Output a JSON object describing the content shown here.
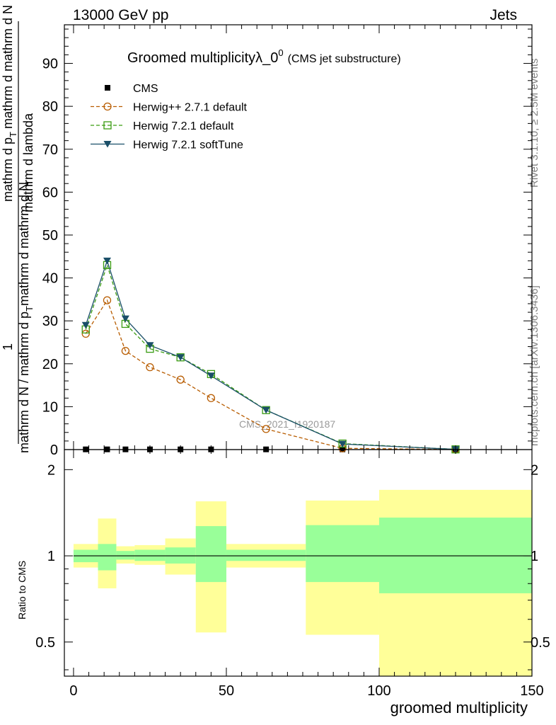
{
  "header": {
    "left": "13000 GeV pp",
    "right": "Jets"
  },
  "side_labels": {
    "rivet": "Rivet 3.1.10, ≥ 2.5M events",
    "mcplots": "mcplots.cern.ch [arXiv:1306.3436]"
  },
  "chart_data": {
    "type": "line",
    "title": "Groomed multiplicityλ_0",
    "title_sup": "0",
    "subtitle": "(CMS jet substructure)",
    "watermark": "CMS_2021_I1920187",
    "xlabel": "groomed multiplicity",
    "ylabel_top": {
      "numerator": "1",
      "denominator": "mathrm d N / mathrm d p",
      "denominator_sub": "T",
      "mid": "mathrm d",
      "mid2": "mathrm d N",
      "mid3": "mathrm d p",
      "mid3_sub": "T",
      "tail": "mathrm d lambda"
    },
    "ylabel_ratio": "Ratio to CMS",
    "xlim": [
      -3,
      150
    ],
    "ylim": [
      0,
      99
    ],
    "ratio_ylim_log": [
      0.38,
      2.35
    ],
    "x_ticks": [
      "0",
      "50",
      "100",
      "150"
    ],
    "y_ticks": [
      "0",
      "10",
      "20",
      "30",
      "40",
      "50",
      "60",
      "70",
      "80",
      "90"
    ],
    "ratio_ticks": [
      "0.5",
      "1",
      "2"
    ],
    "legend_position": "top-left",
    "series": [
      {
        "name": "CMS",
        "marker": "square-filled",
        "color": "#000000",
        "x": [
          4,
          11,
          17,
          25,
          35,
          45,
          63,
          88,
          125
        ],
        "y": [
          0.05,
          0.05,
          0.05,
          0.05,
          0.05,
          0.05,
          0.05,
          0.05,
          0.05
        ]
      },
      {
        "name": "Herwig++ 2.7.1 default",
        "marker": "circle-open",
        "linestyle": "dashed",
        "color": "#b85c00",
        "x": [
          4,
          11,
          17,
          25,
          35,
          45,
          63,
          88,
          125
        ],
        "y": [
          27,
          34.8,
          23,
          19.2,
          16.3,
          12,
          4.8,
          0.3,
          0.02
        ]
      },
      {
        "name": "Herwig 7.2.1 default",
        "marker": "square-open",
        "linestyle": "dashed",
        "color": "#3a9c12",
        "x": [
          4,
          11,
          17,
          25,
          35,
          45,
          63,
          88,
          125
        ],
        "y": [
          28,
          43,
          29.3,
          23.5,
          21.5,
          17.6,
          9.2,
          1.4,
          0.05
        ]
      },
      {
        "name": "Herwig 7.2.1 softTune",
        "marker": "triangle-down-filled",
        "linestyle": "solid",
        "color": "#1a4f68",
        "x": [
          4,
          11,
          17,
          25,
          35,
          45,
          63,
          88,
          125
        ],
        "y": [
          29,
          44,
          30.5,
          24.3,
          21.5,
          17.2,
          9.2,
          1.3,
          0.05
        ]
      }
    ],
    "ratio_bands": {
      "bins": [
        [
          0,
          8
        ],
        [
          8,
          14
        ],
        [
          14,
          20
        ],
        [
          20,
          30
        ],
        [
          30,
          40
        ],
        [
          40,
          50
        ],
        [
          50,
          76
        ],
        [
          76,
          100
        ],
        [
          100,
          150
        ]
      ],
      "green_lo": [
        0.95,
        0.89,
        0.97,
        0.96,
        0.94,
        0.81,
        0.96,
        0.81,
        0.74
      ],
      "green_hi": [
        1.05,
        1.1,
        1.04,
        1.05,
        1.07,
        1.27,
        1.05,
        1.28,
        1.36
      ],
      "yellow_lo": [
        0.91,
        0.77,
        0.94,
        0.93,
        0.86,
        0.54,
        0.91,
        0.53,
        0.38
      ],
      "yellow_hi": [
        1.1,
        1.35,
        1.08,
        1.09,
        1.15,
        1.55,
        1.1,
        1.56,
        1.7
      ],
      "green_color": "#99ff99",
      "yellow_color": "#ffff99"
    }
  }
}
